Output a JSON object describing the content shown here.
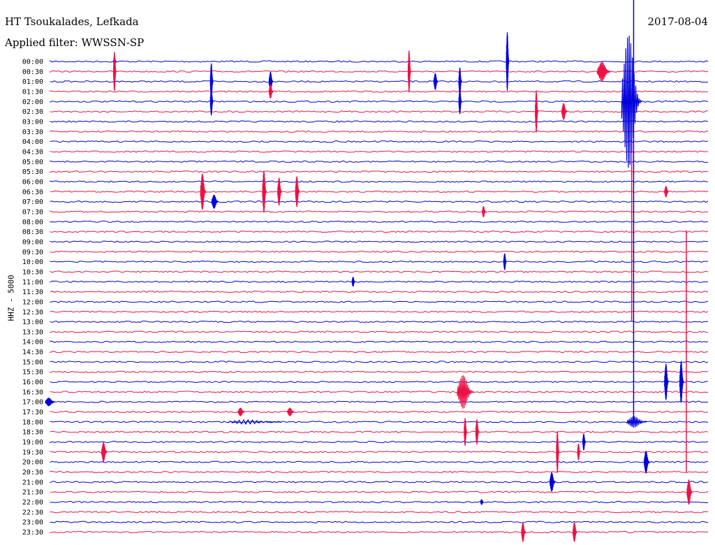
{
  "header": {
    "station": "HT Tsoukalades, Lefkada",
    "date": "2017-08-04",
    "filter": "Applied filter: WWSSN-SP"
  },
  "y_axis_label": "HHZ - 5000",
  "colors": {
    "even": "#0000dd",
    "odd": "#ee1144"
  },
  "chart_data": {
    "type": "helicorder",
    "title": "HT Tsoukalades, Lefkada",
    "ylabel": "HHZ - 5000",
    "row_labels": [
      "00:00",
      "00:30",
      "01:00",
      "01:30",
      "02:00",
      "02:30",
      "03:00",
      "03:30",
      "04:00",
      "04:30",
      "05:00",
      "05:30",
      "06:00",
      "06:30",
      "07:00",
      "07:30",
      "08:00",
      "08:30",
      "09:00",
      "09:30",
      "10:00",
      "10:30",
      "11:00",
      "11:30",
      "12:00",
      "12:30",
      "13:00",
      "13:30",
      "14:00",
      "14:30",
      "15:00",
      "15:30",
      "16:00",
      "16:30",
      "17:00",
      "17:30",
      "18:00",
      "18:30",
      "19:00",
      "19:30",
      "20:00",
      "20:30",
      "21:00",
      "21:30",
      "22:00",
      "22:30",
      "23:00",
      "23:30"
    ],
    "events": [
      {
        "row": 0,
        "t": 0.098,
        "amp": 6,
        "dur": 0.004
      },
      {
        "row": 1,
        "t": 0.098,
        "amp": 28,
        "dur": 0.003
      },
      {
        "row": 1,
        "t": 0.545,
        "amp": 30,
        "dur": 0.004
      },
      {
        "row": 0,
        "t": 0.694,
        "amp": 42,
        "dur": 0.004
      },
      {
        "row": 1,
        "t": 0.84,
        "amp": 14,
        "dur": 0.02
      },
      {
        "row": 2,
        "t": 0.245,
        "amp": 26,
        "dur": 0.004
      },
      {
        "row": 2,
        "t": 0.335,
        "amp": 14,
        "dur": 0.006
      },
      {
        "row": 2,
        "t": 0.585,
        "amp": 12,
        "dur": 0.006
      },
      {
        "row": 2,
        "t": 0.622,
        "amp": 20,
        "dur": 0.004
      },
      {
        "row": 3,
        "t": 0.335,
        "amp": 10,
        "dur": 0.006
      },
      {
        "row": 4,
        "t": 0.245,
        "amp": 20,
        "dur": 0.004
      },
      {
        "row": 4,
        "t": 0.622,
        "amp": 18,
        "dur": 0.004
      },
      {
        "row": 4,
        "t": 0.882,
        "amp": 95,
        "dur": 0.03
      },
      {
        "row": 5,
        "t": 0.738,
        "amp": 30,
        "dur": 0.004
      },
      {
        "row": 5,
        "t": 0.78,
        "amp": 12,
        "dur": 0.008
      },
      {
        "row": 13,
        "t": 0.232,
        "amp": 26,
        "dur": 0.008
      },
      {
        "row": 13,
        "t": 0.325,
        "amp": 30,
        "dur": 0.006
      },
      {
        "row": 13,
        "t": 0.348,
        "amp": 20,
        "dur": 0.006
      },
      {
        "row": 13,
        "t": 0.375,
        "amp": 22,
        "dur": 0.006
      },
      {
        "row": 13,
        "t": 0.935,
        "amp": 8,
        "dur": 0.006
      },
      {
        "row": 14,
        "t": 0.25,
        "amp": 10,
        "dur": 0.01
      },
      {
        "row": 15,
        "t": 0.658,
        "amp": 8,
        "dur": 0.005
      },
      {
        "row": 20,
        "t": 0.69,
        "amp": 12,
        "dur": 0.004
      },
      {
        "row": 22,
        "t": 0.46,
        "amp": 7,
        "dur": 0.004
      },
      {
        "row": 32,
        "t": 0.935,
        "amp": 26,
        "dur": 0.006
      },
      {
        "row": 32,
        "t": 0.958,
        "amp": 30,
        "dur": 0.006
      },
      {
        "row": 33,
        "t": 0.63,
        "amp": 24,
        "dur": 0.025
      },
      {
        "row": 34,
        "t": 0.0,
        "amp": 6,
        "dur": 0.015
      },
      {
        "row": 35,
        "t": 0.29,
        "amp": 6,
        "dur": 0.01
      },
      {
        "row": 35,
        "t": 0.365,
        "amp": 6,
        "dur": 0.01
      },
      {
        "row": 36,
        "t": 0.31,
        "amp": 3,
        "dur": 0.08
      },
      {
        "row": 36,
        "t": 0.89,
        "amp": 8,
        "dur": 0.03
      },
      {
        "row": 37,
        "t": 0.63,
        "amp": 20,
        "dur": 0.004
      },
      {
        "row": 37,
        "t": 0.648,
        "amp": 18,
        "dur": 0.005
      },
      {
        "row": 38,
        "t": 0.81,
        "amp": 12,
        "dur": 0.004
      },
      {
        "row": 39,
        "t": 0.082,
        "amp": 14,
        "dur": 0.008
      },
      {
        "row": 39,
        "t": 0.77,
        "amp": 30,
        "dur": 0.004
      },
      {
        "row": 39,
        "t": 0.802,
        "amp": 12,
        "dur": 0.004
      },
      {
        "row": 40,
        "t": 0.905,
        "amp": 16,
        "dur": 0.008
      },
      {
        "row": 42,
        "t": 0.762,
        "amp": 14,
        "dur": 0.008
      },
      {
        "row": 43,
        "t": 0.97,
        "amp": 18,
        "dur": 0.008
      },
      {
        "row": 44,
        "t": 0.655,
        "amp": 4,
        "dur": 0.004
      },
      {
        "row": 47,
        "t": 0.718,
        "amp": 14,
        "dur": 0.006
      },
      {
        "row": 47,
        "t": 0.796,
        "amp": 14,
        "dur": 0.006
      }
    ],
    "long_lines": [
      {
        "t": 0.885,
        "from_row": 0,
        "to_row": 36
      },
      {
        "t": 0.882,
        "from_row": 11,
        "to_row": 26
      },
      {
        "t": 0.965,
        "from_row": 23,
        "to_row": 41
      }
    ]
  }
}
